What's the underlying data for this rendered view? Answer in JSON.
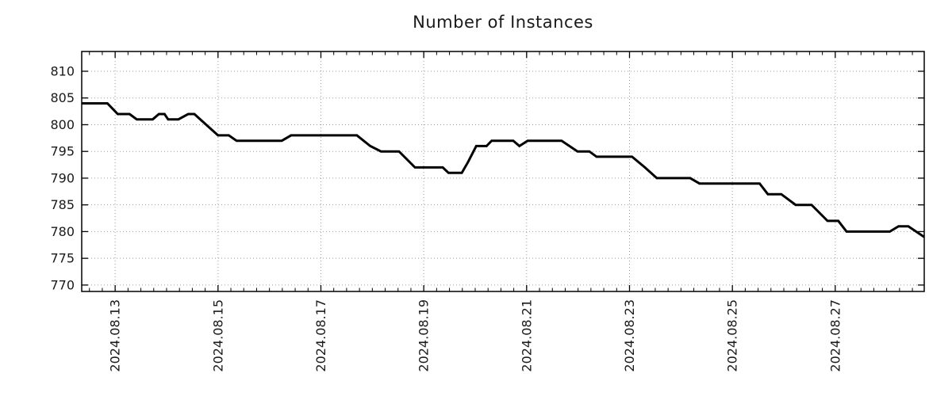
{
  "title": "Number of Instances",
  "chart_data": {
    "type": "line",
    "title": "Number of Instances",
    "xlabel": "",
    "ylabel": "",
    "legend": "none",
    "grid": {
      "style": "dotted",
      "color": "#9e9e9e",
      "vertical": true,
      "horizontal": true
    },
    "x_axis": {
      "kind": "date",
      "tick_labels": [
        "2024.08.13",
        "2024.08.15",
        "2024.08.17",
        "2024.08.19",
        "2024.08.21",
        "2024.08.23",
        "2024.08.25",
        "2024.08.27"
      ],
      "tick_positions_days": [
        0,
        2,
        4,
        6,
        8,
        10,
        12,
        14
      ],
      "minor_tick_step_days": 0.25,
      "range_days": [
        -0.65,
        15.73
      ],
      "label_rotation_deg": -90
    },
    "y_axis": {
      "ticks": [
        770,
        775,
        780,
        785,
        790,
        795,
        800,
        805,
        810
      ],
      "range": [
        768.8,
        813.7
      ]
    },
    "series": [
      {
        "name": "Number of Instances",
        "color": "#000000",
        "line_width": 3,
        "points_day_value": [
          [
            -0.65,
            804
          ],
          [
            -0.15,
            804
          ],
          [
            0.05,
            802
          ],
          [
            0.28,
            802
          ],
          [
            0.42,
            801
          ],
          [
            0.73,
            801
          ],
          [
            0.85,
            802
          ],
          [
            0.96,
            802
          ],
          [
            1.03,
            801
          ],
          [
            1.23,
            801
          ],
          [
            1.42,
            802
          ],
          [
            1.54,
            802
          ],
          [
            1.77,
            800
          ],
          [
            2.0,
            798
          ],
          [
            2.21,
            798
          ],
          [
            2.36,
            797
          ],
          [
            3.24,
            797
          ],
          [
            3.42,
            798
          ],
          [
            4.7,
            798
          ],
          [
            4.96,
            796
          ],
          [
            5.17,
            795
          ],
          [
            5.52,
            795
          ],
          [
            5.83,
            792
          ],
          [
            6.37,
            792
          ],
          [
            6.48,
            791
          ],
          [
            6.74,
            791
          ],
          [
            6.86,
            793
          ],
          [
            7.02,
            796
          ],
          [
            7.22,
            796
          ],
          [
            7.32,
            797
          ],
          [
            7.74,
            797
          ],
          [
            7.86,
            796
          ],
          [
            8.02,
            797
          ],
          [
            8.68,
            797
          ],
          [
            8.99,
            795
          ],
          [
            9.22,
            795
          ],
          [
            9.36,
            794
          ],
          [
            10.05,
            794
          ],
          [
            10.3,
            792
          ],
          [
            10.53,
            790
          ],
          [
            11.18,
            790
          ],
          [
            11.36,
            789
          ],
          [
            12.53,
            789
          ],
          [
            12.69,
            787
          ],
          [
            12.95,
            787
          ],
          [
            13.23,
            785
          ],
          [
            13.54,
            785
          ],
          [
            13.85,
            782
          ],
          [
            14.06,
            782
          ],
          [
            14.22,
            780
          ],
          [
            15.06,
            780
          ],
          [
            15.23,
            781
          ],
          [
            15.42,
            781
          ],
          [
            15.73,
            779
          ]
        ]
      }
    ]
  },
  "colors": {
    "line": "#000000",
    "grid": "#9e9e9e",
    "axis": "#000000",
    "text": "#1a1a1a",
    "background": "#ffffff"
  }
}
